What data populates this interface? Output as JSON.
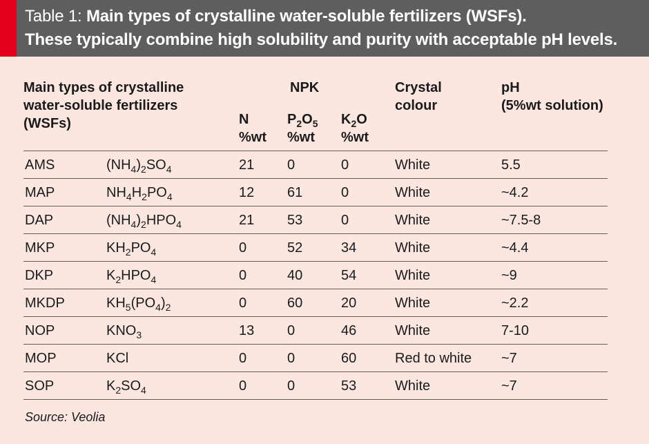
{
  "header": {
    "label": "Table 1:",
    "title_line1": "Main types of crystalline water-soluble fertilizers (WSFs).",
    "title_line2": "These typically combine high solubility and purity with acceptable pH levels.",
    "accent_color": "#e3001b",
    "bar_color": "#5e5e5e"
  },
  "table": {
    "headers": {
      "main_types_1": "Main types of crystalline",
      "main_types_2": "water-soluble fertilizers",
      "main_types_3": "(WSFs)",
      "npk": "NPK",
      "n": "N",
      "n_unit": "%wt",
      "p_base": "P",
      "p_sub1": "2",
      "p_mid": "O",
      "p_sub2": "5",
      "p_unit": "%wt",
      "k_base": "K",
      "k_sub": "2",
      "k_end": "O",
      "k_unit": "%wt",
      "colour_1": "Crystal",
      "colour_2": "colour",
      "ph_1": "pH",
      "ph_2": "(5%wt solution)"
    },
    "rows": [
      {
        "abbr": "AMS",
        "formula": [
          {
            "t": "(NH"
          },
          {
            "s": "4"
          },
          {
            "t": ")"
          },
          {
            "s": "2"
          },
          {
            "t": "SO"
          },
          {
            "s": "4"
          }
        ],
        "n": "21",
        "p": "0",
        "k": "0",
        "colour": "White",
        "ph": "5.5"
      },
      {
        "abbr": "MAP",
        "formula": [
          {
            "t": "NH"
          },
          {
            "s": "4"
          },
          {
            "t": "H"
          },
          {
            "s": "2"
          },
          {
            "t": "PO"
          },
          {
            "s": "4"
          }
        ],
        "n": "12",
        "p": "61",
        "k": "0",
        "colour": "White",
        "ph": "~4.2"
      },
      {
        "abbr": "DAP",
        "formula": [
          {
            "t": "(NH"
          },
          {
            "s": "4"
          },
          {
            "t": ")"
          },
          {
            "s": "2"
          },
          {
            "t": "HPO"
          },
          {
            "s": "4"
          }
        ],
        "n": "21",
        "p": "53",
        "k": "0",
        "colour": "White",
        "ph": "~7.5-8"
      },
      {
        "abbr": "MKP",
        "formula": [
          {
            "t": "KH"
          },
          {
            "s": "2"
          },
          {
            "t": "PO"
          },
          {
            "s": "4"
          }
        ],
        "n": "0",
        "p": "52",
        "k": "34",
        "colour": "White",
        "ph": "~4.4"
      },
      {
        "abbr": "DKP",
        "formula": [
          {
            "t": "K"
          },
          {
            "s": "2"
          },
          {
            "t": "HPO"
          },
          {
            "s": "4"
          }
        ],
        "n": "0",
        "p": "40",
        "k": "54",
        "colour": "White",
        "ph": "~9"
      },
      {
        "abbr": "MKDP",
        "formula": [
          {
            "t": "KH"
          },
          {
            "s": "5"
          },
          {
            "t": "(PO"
          },
          {
            "s": "4"
          },
          {
            "t": ")"
          },
          {
            "s": "2"
          }
        ],
        "n": "0",
        "p": "60",
        "k": "20",
        "colour": "White",
        "ph": "~2.2"
      },
      {
        "abbr": "NOP",
        "formula": [
          {
            "t": "KNO"
          },
          {
            "s": "3"
          }
        ],
        "n": "13",
        "p": "0",
        "k": "46",
        "colour": "White",
        "ph": "7-10"
      },
      {
        "abbr": "MOP",
        "formula": [
          {
            "t": "KCl"
          }
        ],
        "n": "0",
        "p": "0",
        "k": "60",
        "colour": "Red to white",
        "ph": "~7"
      },
      {
        "abbr": "SOP",
        "formula": [
          {
            "t": "K"
          },
          {
            "s": "2"
          },
          {
            "t": "SO"
          },
          {
            "s": "4"
          }
        ],
        "n": "0",
        "p": "0",
        "k": "53",
        "colour": "White",
        "ph": "~7"
      }
    ]
  },
  "source": "Source: Veolia",
  "background_color": "#fce6e0"
}
